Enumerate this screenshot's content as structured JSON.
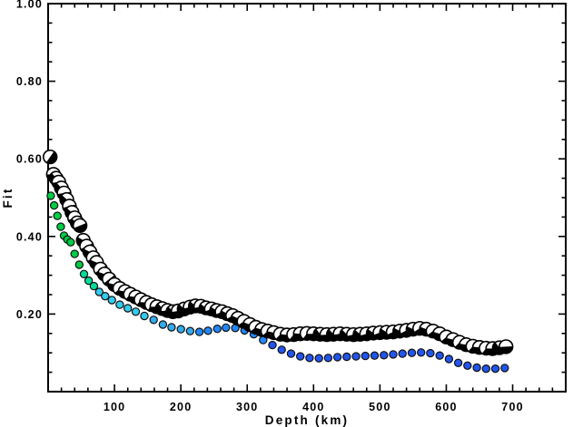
{
  "background": "#ffffff",
  "frame_color": "#000000",
  "chart_data": {
    "type": "scatter",
    "title": "",
    "xlabel": "Depth (km)",
    "ylabel": "Fit",
    "xlim": [
      0,
      780
    ],
    "ylim": [
      0,
      1.0
    ],
    "x_major_tick_step": 100,
    "x_minor_tick_step": 20,
    "y_major_tick_step": 0.2,
    "y_minor_tick_step": 0.05,
    "x_tick_labels": [
      "100",
      "200",
      "300",
      "400",
      "500",
      "600",
      "700"
    ],
    "y_tick_labels": [
      "0.20",
      "0.40",
      "0.60",
      "0.80",
      "1.00"
    ],
    "grid": false,
    "legend": "none",
    "series": [
      {
        "name": "colored-dot-fit",
        "marker": "small-circle",
        "outline_color": "#111111",
        "color_by_depth": [
          {
            "max_depth": 50,
            "color": "#00CC44"
          },
          {
            "max_depth": 72,
            "color": "#00DD99"
          },
          {
            "max_depth": 150,
            "color": "#33CCEE"
          },
          {
            "max_depth": 215,
            "color": "#33AAEE"
          },
          {
            "max_depth": 330,
            "color": "#2288FF"
          },
          {
            "max_depth": 9999,
            "color": "#2255EE"
          }
        ],
        "points": [
          [
            4,
            0.505
          ],
          [
            9,
            0.48
          ],
          [
            14,
            0.453
          ],
          [
            19,
            0.425
          ],
          [
            24,
            0.402
          ],
          [
            29,
            0.392
          ],
          [
            34,
            0.385
          ],
          [
            40,
            0.355
          ],
          [
            47,
            0.327
          ],
          [
            54,
            0.303
          ],
          [
            61,
            0.286
          ],
          [
            69,
            0.272
          ],
          [
            77,
            0.257
          ],
          [
            86,
            0.246
          ],
          [
            96,
            0.236
          ],
          [
            108,
            0.224
          ],
          [
            120,
            0.215
          ],
          [
            132,
            0.206
          ],
          [
            145,
            0.195
          ],
          [
            159,
            0.185
          ],
          [
            173,
            0.173
          ],
          [
            186,
            0.166
          ],
          [
            200,
            0.161
          ],
          [
            214,
            0.156
          ],
          [
            228,
            0.154
          ],
          [
            241,
            0.157
          ],
          [
            255,
            0.162
          ],
          [
            268,
            0.165
          ],
          [
            282,
            0.164
          ],
          [
            296,
            0.158
          ],
          [
            310,
            0.148
          ],
          [
            324,
            0.133
          ],
          [
            338,
            0.12
          ],
          [
            352,
            0.108
          ],
          [
            366,
            0.098
          ],
          [
            380,
            0.091
          ],
          [
            394,
            0.087
          ],
          [
            408,
            0.086
          ],
          [
            422,
            0.087
          ],
          [
            436,
            0.089
          ],
          [
            450,
            0.09
          ],
          [
            464,
            0.091
          ],
          [
            478,
            0.092
          ],
          [
            492,
            0.093
          ],
          [
            506,
            0.094
          ],
          [
            520,
            0.096
          ],
          [
            534,
            0.098
          ],
          [
            548,
            0.1
          ],
          [
            562,
            0.101
          ],
          [
            576,
            0.099
          ],
          [
            590,
            0.093
          ],
          [
            604,
            0.084
          ],
          [
            618,
            0.074
          ],
          [
            632,
            0.067
          ],
          [
            646,
            0.062
          ],
          [
            660,
            0.059
          ],
          [
            674,
            0.059
          ],
          [
            688,
            0.061
          ]
        ]
      },
      {
        "name": "beachball-fit",
        "marker": "beachball",
        "fill_color": "#000000",
        "background_color": "#ffffff",
        "outline_color": "#000000",
        "points": [
          [
            3,
            0.605
          ],
          [
            8,
            0.56
          ],
          [
            12,
            0.55
          ],
          [
            16,
            0.54
          ],
          [
            20,
            0.525
          ],
          [
            24,
            0.512
          ],
          [
            28,
            0.495
          ],
          [
            32,
            0.478
          ],
          [
            36,
            0.462
          ],
          [
            40,
            0.448
          ],
          [
            44,
            0.435
          ],
          [
            48,
            0.428
          ],
          [
            53,
            0.39
          ],
          [
            58,
            0.375
          ],
          [
            63,
            0.36
          ],
          [
            68,
            0.345
          ],
          [
            73,
            0.333
          ],
          [
            79,
            0.316
          ],
          [
            85,
            0.303
          ],
          [
            92,
            0.29
          ],
          [
            100,
            0.276
          ],
          [
            108,
            0.266
          ],
          [
            116,
            0.258
          ],
          [
            124,
            0.251
          ],
          [
            132,
            0.244
          ],
          [
            140,
            0.237
          ],
          [
            148,
            0.23
          ],
          [
            156,
            0.224
          ],
          [
            164,
            0.219
          ],
          [
            172,
            0.214
          ],
          [
            180,
            0.209
          ],
          [
            188,
            0.206
          ],
          [
            196,
            0.208
          ],
          [
            205,
            0.213
          ],
          [
            214,
            0.218
          ],
          [
            222,
            0.221
          ],
          [
            230,
            0.22
          ],
          [
            238,
            0.216
          ],
          [
            246,
            0.213
          ],
          [
            254,
            0.209
          ],
          [
            262,
            0.206
          ],
          [
            270,
            0.201
          ],
          [
            278,
            0.196
          ],
          [
            286,
            0.189
          ],
          [
            295,
            0.181
          ],
          [
            304,
            0.173
          ],
          [
            313,
            0.166
          ],
          [
            322,
            0.16
          ],
          [
            331,
            0.156
          ],
          [
            340,
            0.152
          ],
          [
            350,
            0.148
          ],
          [
            360,
            0.146
          ],
          [
            370,
            0.147
          ],
          [
            380,
            0.149
          ],
          [
            390,
            0.15
          ],
          [
            400,
            0.149
          ],
          [
            410,
            0.148
          ],
          [
            420,
            0.147
          ],
          [
            430,
            0.148
          ],
          [
            440,
            0.149
          ],
          [
            450,
            0.148
          ],
          [
            460,
            0.147
          ],
          [
            470,
            0.148
          ],
          [
            480,
            0.149
          ],
          [
            490,
            0.151
          ],
          [
            500,
            0.152
          ],
          [
            510,
            0.153
          ],
          [
            520,
            0.154
          ],
          [
            530,
            0.156
          ],
          [
            540,
            0.158
          ],
          [
            550,
            0.161
          ],
          [
            560,
            0.163
          ],
          [
            570,
            0.161
          ],
          [
            580,
            0.156
          ],
          [
            590,
            0.149
          ],
          [
            600,
            0.141
          ],
          [
            610,
            0.134
          ],
          [
            620,
            0.127
          ],
          [
            630,
            0.121
          ],
          [
            640,
            0.117
          ],
          [
            650,
            0.114
          ],
          [
            660,
            0.112
          ],
          [
            670,
            0.111
          ],
          [
            680,
            0.113
          ],
          [
            690,
            0.116
          ]
        ]
      }
    ]
  }
}
